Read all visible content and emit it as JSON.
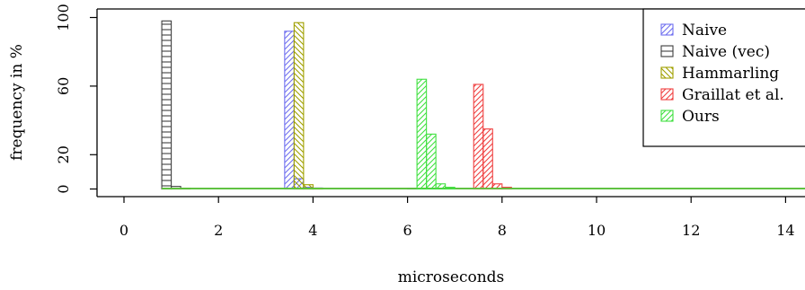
{
  "chart_data": {
    "type": "bar",
    "title": "",
    "xlabel": "microseconds",
    "ylabel": "frequency in %",
    "xlim": [
      0,
      14.6
    ],
    "ylim": [
      0,
      100
    ],
    "x_ticks": [
      0,
      2,
      4,
      6,
      8,
      10,
      12,
      14
    ],
    "y_ticks": [
      0,
      20,
      60,
      100
    ],
    "bin_width": 0.2,
    "grid": false,
    "legend_position": "top-right",
    "series": [
      {
        "name": "Naive",
        "color": "#7070f0",
        "hatch": "diagonal-up",
        "bins": [
          [
            3.4,
            92
          ],
          [
            3.6,
            6
          ],
          [
            3.8,
            1
          ],
          [
            4.0,
            0.6
          ],
          [
            6.0,
            0.4
          ]
        ],
        "baseline_range": [
          0.8,
          14.6
        ]
      },
      {
        "name": "Naive (vec)",
        "color": "#404040",
        "hatch": "grid",
        "bins": [
          [
            0.8,
            98
          ],
          [
            1.0,
            1.5
          ],
          [
            1.2,
            0.5
          ]
        ],
        "baseline_range": [
          0.8,
          14.6
        ]
      },
      {
        "name": "Hammarling",
        "color": "#a0a000",
        "hatch": "diagonal-down",
        "bins": [
          [
            3.6,
            97
          ],
          [
            3.8,
            2.5
          ],
          [
            4.0,
            0.5
          ]
        ],
        "baseline_range": [
          0.8,
          14.6
        ]
      },
      {
        "name": "Graillat et al.",
        "color": "#f04040",
        "hatch": "diagonal-up",
        "bins": [
          [
            7.4,
            61
          ],
          [
            7.6,
            35
          ],
          [
            7.8,
            3
          ],
          [
            8.0,
            1
          ]
        ],
        "baseline_range": [
          0.8,
          14.6
        ]
      },
      {
        "name": "Ours",
        "color": "#40e040",
        "hatch": "diagonal-up",
        "bins": [
          [
            6.2,
            64
          ],
          [
            6.4,
            32
          ],
          [
            6.6,
            3
          ],
          [
            6.8,
            1
          ]
        ],
        "baseline_range": [
          0.8,
          14.6
        ]
      }
    ]
  }
}
